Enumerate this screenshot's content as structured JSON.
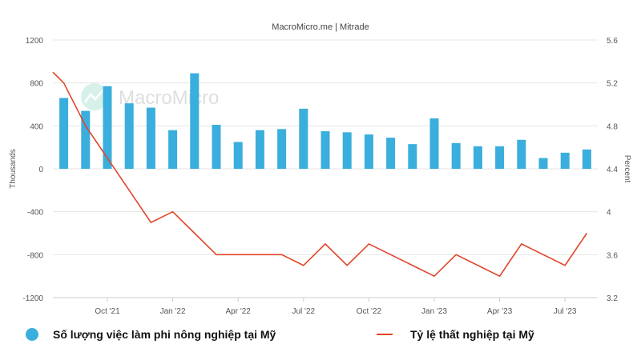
{
  "chart_data": {
    "type": "bar",
    "title": "MacroMicro.me | Mitrade",
    "watermark": "MacroMicro",
    "x_ticks": [
      "Oct '21",
      "Jan '22",
      "Apr '22",
      "Jul '22",
      "Oct '22",
      "Jan '23",
      "Apr '23",
      "Jul '23"
    ],
    "categories": [
      "2021-08",
      "2021-09",
      "2021-10",
      "2021-11",
      "2021-12",
      "2022-01",
      "2022-02",
      "2022-03",
      "2022-04",
      "2022-05",
      "2022-06",
      "2022-07",
      "2022-08",
      "2022-09",
      "2022-10",
      "2022-11",
      "2022-12",
      "2023-01",
      "2023-02",
      "2023-03",
      "2023-04",
      "2023-05",
      "2023-06",
      "2023-07",
      "2023-08"
    ],
    "y_left": {
      "label": "Thousands",
      "lim": [
        -1200,
        1200
      ],
      "ticks": [
        1200,
        800,
        400,
        0,
        -400,
        -800,
        -1200
      ]
    },
    "y_right": {
      "label": "Percent",
      "lim": [
        3.2,
        5.6
      ],
      "ticks": [
        "5.6",
        "5.2",
        "4.8",
        "4.4",
        "4",
        "3.6",
        "3.2"
      ]
    },
    "series": [
      {
        "name": "Số lượng việc làm phi nông nghiệp tại Mỹ",
        "type": "bar",
        "axis": "left",
        "color": "#3aaedc",
        "values": [
          660,
          540,
          770,
          610,
          570,
          360,
          890,
          410,
          250,
          360,
          370,
          560,
          350,
          340,
          320,
          290,
          230,
          470,
          240,
          210,
          210,
          270,
          100,
          150,
          180
        ]
      },
      {
        "name": "Tỷ lệ thất nghiệp tại Mỹ",
        "type": "line",
        "axis": "right",
        "color": "#e0462a",
        "values": [
          5.2,
          4.8,
          4.5,
          4.2,
          3.9,
          4.0,
          3.8,
          3.6,
          3.6,
          3.6,
          3.6,
          3.5,
          3.7,
          3.5,
          3.7,
          3.6,
          3.5,
          3.4,
          3.6,
          3.5,
          3.4,
          3.7,
          3.6,
          3.5,
          3.8
        ],
        "line_start": 5.3
      }
    ],
    "grid": true,
    "legend_position": "bottom"
  }
}
